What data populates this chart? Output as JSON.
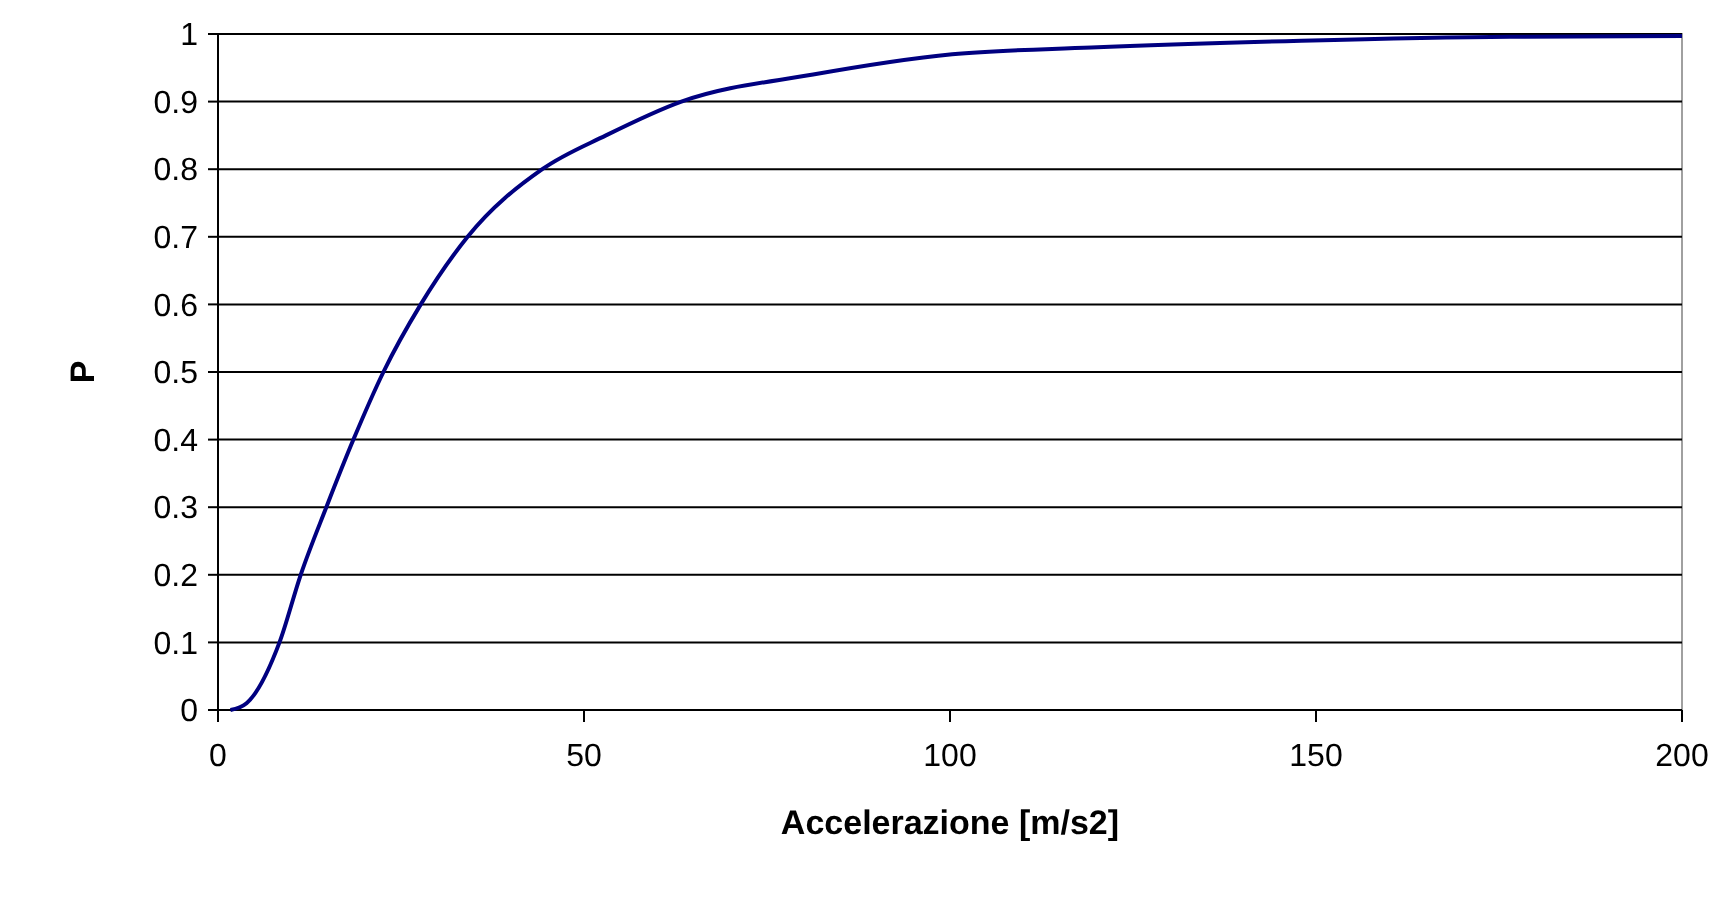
{
  "chart_data": {
    "type": "line",
    "xlabel": "Accelerazione [m/s2]",
    "ylabel": "P",
    "xlim": [
      0,
      200
    ],
    "xticks": [
      0,
      50,
      100,
      150,
      200
    ],
    "ylim": [
      0,
      1
    ],
    "yticks": [
      0,
      0.1,
      0.2,
      0.3,
      0.4,
      0.5,
      0.6,
      0.7,
      0.8,
      0.9,
      1
    ],
    "grid": "y",
    "marker": "none",
    "series": [
      {
        "color": "#000080",
        "x": [
          1.7,
          3.9,
          8.4,
          11.3,
          14.8,
          18.5,
          22.6,
          27.7,
          34.1,
          44.3,
          53,
          63.3,
          81.3,
          100.3,
          119.3,
          148,
          176.5,
          200
        ],
        "values": [
          0,
          0.01,
          0.1,
          0.2,
          0.3,
          0.4,
          0.5,
          0.6,
          0.7,
          0.8,
          0.85,
          0.9,
          0.94,
          0.97,
          0.98,
          0.99,
          0.996,
          0.997
        ]
      }
    ]
  }
}
